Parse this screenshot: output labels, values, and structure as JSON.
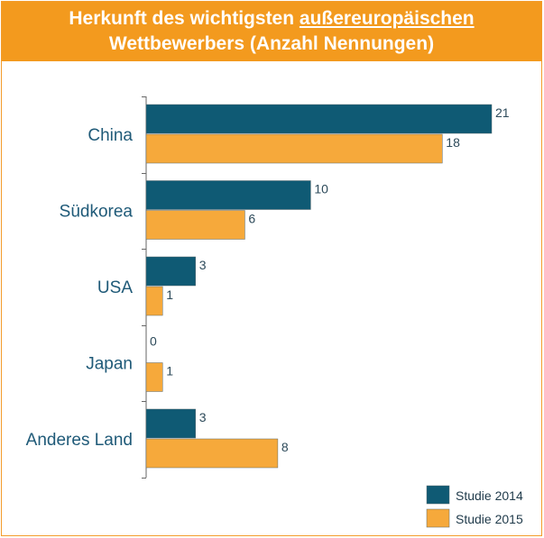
{
  "title": {
    "line1_prefix": "Herkunft des wichtigsten ",
    "line1_underlined": "außereuropäischen",
    "line2": "Wettbewerbers (Anzahl Nennungen)"
  },
  "chart_data": {
    "type": "bar",
    "orientation": "horizontal",
    "title": "Herkunft des wichtigsten außereuropäischen Wettbewerbers (Anzahl Nennungen)",
    "categories": [
      "China",
      "Südkorea",
      "USA",
      "Japan",
      "Anderes Land"
    ],
    "series": [
      {
        "name": "Studie 2014",
        "values": [
          21,
          10,
          3,
          0,
          3
        ],
        "color": "#0f5a74"
      },
      {
        "name": "Studie 2015",
        "values": [
          18,
          6,
          1,
          1,
          8
        ],
        "color": "#f6a93b"
      }
    ],
    "xlim": [
      0,
      23
    ],
    "grid": false,
    "legend_position": "bottom-right",
    "data_labels": true
  }
}
